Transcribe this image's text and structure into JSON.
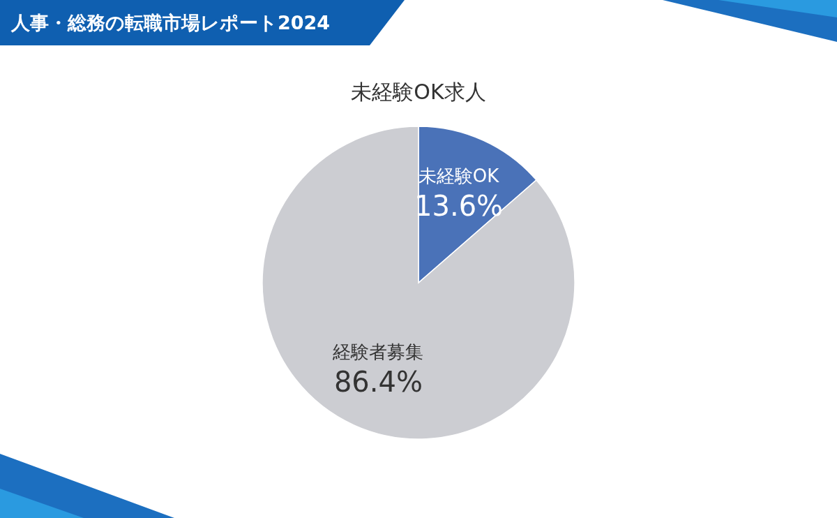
{
  "chart_data": {
    "type": "pie",
    "title": "未経験OK求人",
    "annotations": [
      "人事・総務の転職市場レポート2024"
    ],
    "categories": [
      "未経験OK",
      "経験者募集"
    ],
    "values": [
      13.6,
      86.4
    ],
    "value_labels": [
      "13.6%",
      "86.4%"
    ],
    "colors": [
      "#4a72b8",
      "#cccdd2"
    ]
  }
}
